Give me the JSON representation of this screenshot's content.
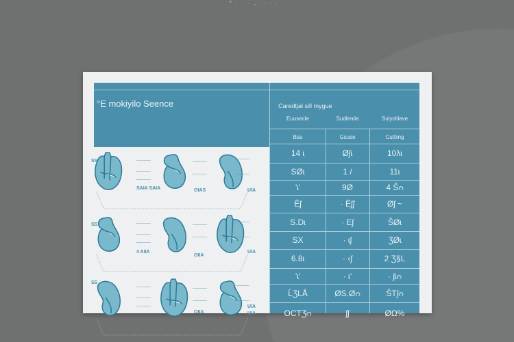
{
  "top_caption": "° · · · ,· · · · ·",
  "panel_title": "°E mokiyilo Seence",
  "table": {
    "title": "Caredtjal sill mygue",
    "group_headers": [
      "Euusecle",
      "Sudlenile",
      "Sulyollieve"
    ],
    "columns": [
      "Bsa",
      "Gsuse",
      "Cuttiing"
    ],
    "rows": [
      [
        "14 ɩ",
        "Øʃɩ",
        "10λɩ"
      ],
      [
        "SØɩ",
        "1 /",
        "11ɩ"
      ],
      [
        "ʽɩ'",
        "9Ø",
        "4 Šᴒ"
      ],
      [
        "Éʃ",
        "· Ëʃʃ",
        "Øʃ ~"
      ],
      [
        "S.Dɩ",
        "· Eʃ",
        "ŠØɩ"
      ],
      [
        "SX",
        "· ɩʃ",
        "ƷØɩ"
      ],
      [
        "6.8ɩ",
        "· ‹ʃ",
        "2 Ʒ§L"
      ],
      [
        "ʽɩ'",
        "· ɩ'",
        "· ʃɩᴒ"
      ],
      [
        "ĹƷLÅ",
        "ØS.Øᴒ",
        "ŠTʃᴒ"
      ],
      [
        "OCTƷᴒ",
        "ʃʃ",
        "ØΩ%"
      ]
    ]
  },
  "illustration": {
    "labels": [
      "SS",
      "SS",
      "SS",
      "OIAS",
      "UIA",
      "SAIA SAIA",
      "4 AIIA",
      "OIIA",
      "UIA",
      "OIIA",
      "UIA",
      "UIA"
    ]
  },
  "colors": {
    "accent": "#4a8fab",
    "organ_fill": "#7ab8cc",
    "organ_stroke": "#2e7a96",
    "background": "#6f7070",
    "card": "#eef0f1"
  }
}
